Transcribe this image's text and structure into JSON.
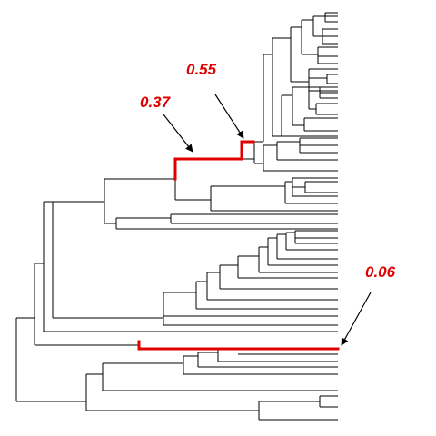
{
  "annotations": [
    {
      "id": "label-055",
      "text": "0.55"
    },
    {
      "id": "label-037",
      "text": "0.37"
    },
    {
      "id": "label-006",
      "text": "0.06"
    }
  ],
  "colors": {
    "tree": "#000000",
    "highlight": "#e00000",
    "label": "#e00000",
    "arrow": "#000000"
  }
}
